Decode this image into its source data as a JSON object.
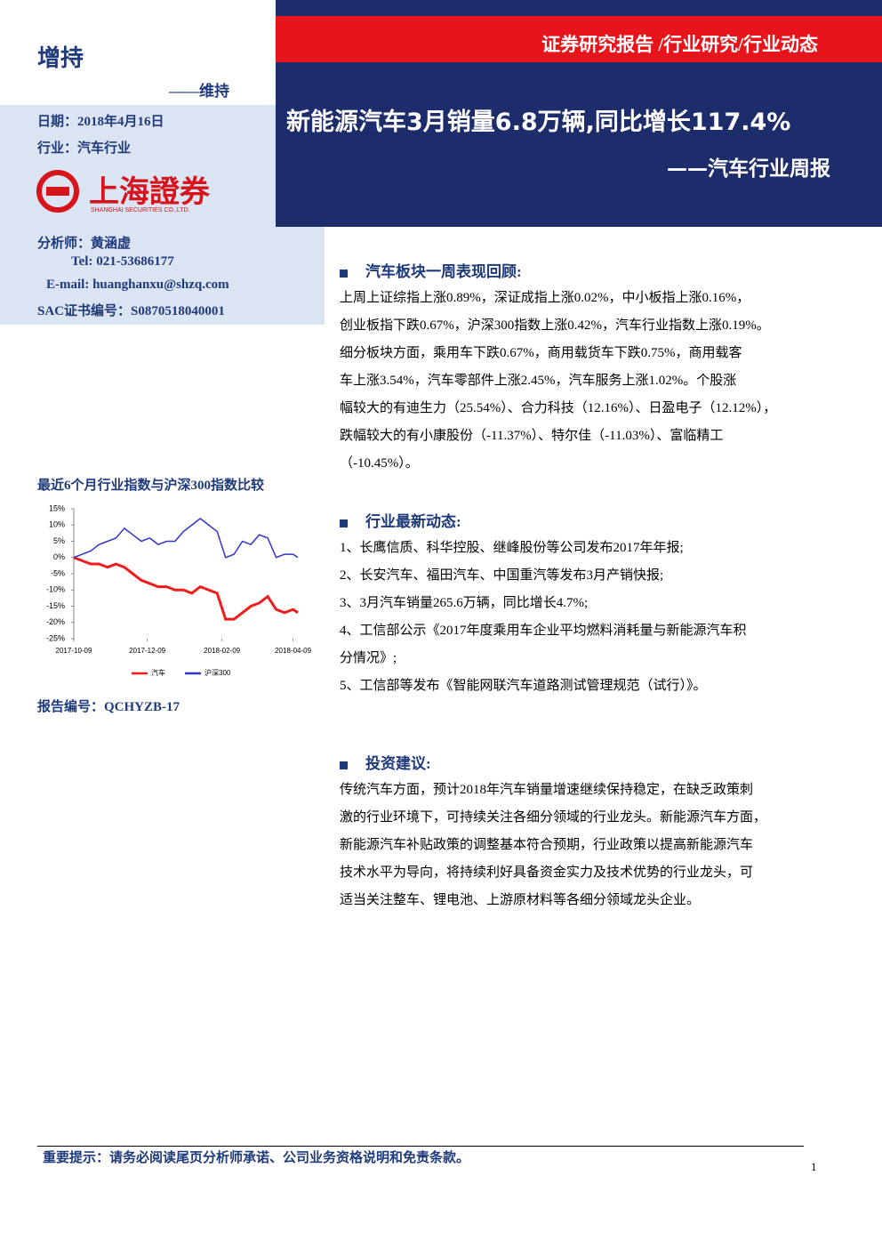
{
  "header": {
    "rating": "增持",
    "rating_prev": "——维持",
    "date": "日期：2018年4月16日",
    "industry": "行业：汽车行业",
    "logo_cn": "上海證券",
    "logo_en": "SHANGHAI SECURITIES CO.,LTD.",
    "report_type": "证券研究报告 /行业研究/行业动态",
    "title": "新能源汽车3月销量6.8万辆,同比增长117.4%",
    "subtitle": "——汽车行业周报"
  },
  "analyst": {
    "name": "分析师：黄涵虚",
    "tel": "Tel: 021-53686177",
    "email": "E-mail: huanghanxu@shzq.com",
    "sac": "SAC证书编号：S0870518040001"
  },
  "sections": [
    {
      "heading": "汽车板块一周表现回顾:",
      "lines": [
        "上周上证综指上涨0.89%，深证成指上涨0.02%，中小板指上涨0.16%，",
        "创业板指下跌0.67%，沪深300指数上涨0.42%，汽车行业指数上涨0.19%。",
        "细分板块方面，乘用车下跌0.67%，商用载货车下跌0.75%，商用载客",
        "车上涨3.54%，汽车零部件上涨2.45%，汽车服务上涨1.02%。个股涨",
        "幅较大的有迪生力（25.54%）、合力科技（12.16%）、日盈电子（12.12%），",
        "跌幅较大的有小康股份（-11.37%）、特尔佳（-11.03%）、富临精工",
        "（-10.45%）。"
      ]
    },
    {
      "heading": "行业最新动态:",
      "lines": [
        "1、长鹰信质、科华控股、继峰股份等公司发布2017年年报;",
        "2、长安汽车、福田汽车、中国重汽等发布3月产销快报;",
        "3、3月汽车销量265.6万辆，同比增长4.7%;",
        "4、工信部公示《2017年度乘用车企业平均燃料消耗量与新能源汽车积",
        "分情况》;",
        "5、工信部等发布《智能网联汽车道路测试管理规范（试行）》。"
      ]
    },
    {
      "heading": "投资建议:",
      "lines": [
        "传统汽车方面，预计2018年汽车销量增速继续保持稳定，在缺乏政策刺",
        "激的行业环境下，可持续关注各细分领域的行业龙头。新能源汽车方面，",
        "新能源汽车补贴政策的调整基本符合预期，行业政策以提高新能源汽车",
        "技术水平为导向，将持续利好具备资金实力及技术优势的行业龙头，可",
        "适当关注整车、锂电池、上游原材料等各细分领域龙头企业。"
      ]
    }
  ],
  "chart_caption": "最近6个月行业指数与沪深300指数比较",
  "chart_data": {
    "type": "line",
    "x": [
      "2017-10-09",
      "2017-10-16",
      "2017-10-23",
      "2017-10-30",
      "2017-11-06",
      "2017-11-13",
      "2017-11-20",
      "2017-11-27",
      "2017-12-04",
      "2017-12-11",
      "2017-12-18",
      "2017-12-25",
      "2018-01-01",
      "2018-01-08",
      "2018-01-15",
      "2018-01-22",
      "2018-01-29",
      "2018-02-05",
      "2018-02-12",
      "2018-02-19",
      "2018-02-26",
      "2018-03-05",
      "2018-03-12",
      "2018-03-19",
      "2018-03-26",
      "2018-04-02",
      "2018-04-09",
      "2018-04-13"
    ],
    "series": [
      {
        "name": "汽车",
        "color": "#ee1c1c",
        "values": [
          0,
          -1,
          -2,
          -2,
          -3,
          -2,
          -3,
          -5,
          -7,
          -8,
          -9,
          -9,
          -10,
          -10,
          -11,
          -9,
          -10,
          -11,
          -19,
          -19,
          -17,
          -15,
          -14,
          -12,
          -16,
          -17,
          -16,
          -17
        ]
      },
      {
        "name": "沪深300",
        "color": "#3333cc",
        "values": [
          0,
          1,
          2,
          4,
          5,
          6,
          9,
          7,
          5,
          6,
          4,
          5,
          5,
          8,
          10,
          12,
          10,
          8,
          0,
          1,
          5,
          4,
          7,
          6,
          0,
          1,
          1,
          0
        ]
      }
    ],
    "xlim": [
      "2017-10-09",
      "2018-04-13"
    ],
    "xticks": [
      "2017-10-09",
      "2017-12-09",
      "2018-02-09",
      "2018-04-09"
    ],
    "ylim": [
      -25,
      15
    ],
    "yticks": [
      {
        "value": 15,
        "label": "15%"
      },
      {
        "value": 10,
        "label": "10%"
      },
      {
        "value": 5,
        "label": "5%"
      },
      {
        "value": 0,
        "label": "0%"
      },
      {
        "value": -5,
        "label": "-5%"
      },
      {
        "value": -10,
        "label": "-10%"
      },
      {
        "value": -15,
        "label": "-15%"
      },
      {
        "value": -20,
        "label": "-20%"
      },
      {
        "value": -25,
        "label": "-25%"
      }
    ],
    "legend": "bottom"
  },
  "report_no": "报告编号：QCHYZB-17",
  "footer": {
    "notice": "重要提示：请务必阅读尾页分析师承诺、公司业务资格说明和免责条款。",
    "page": "1"
  }
}
